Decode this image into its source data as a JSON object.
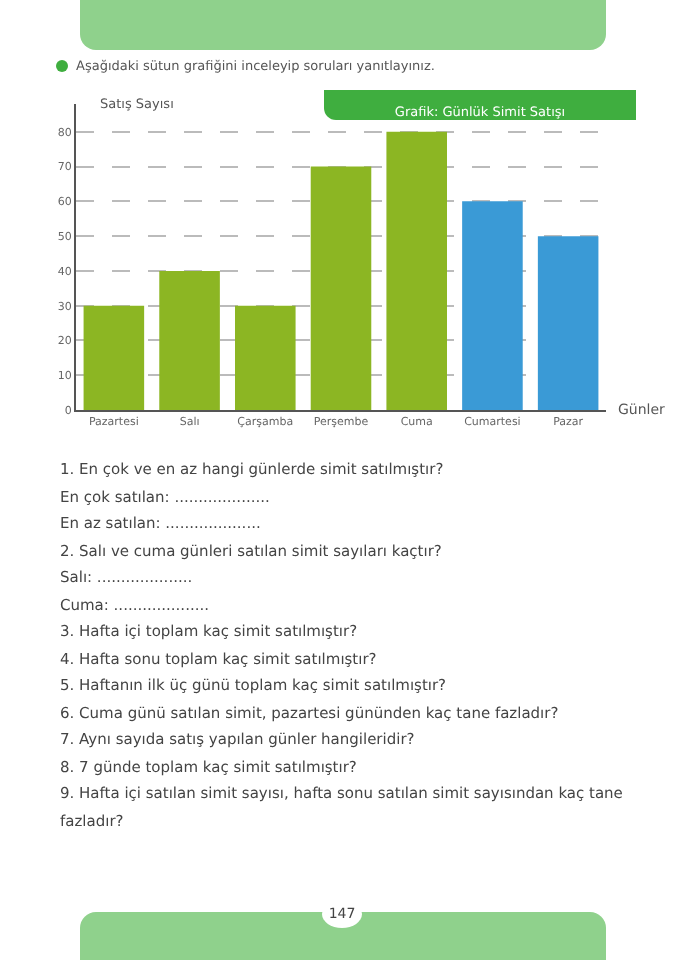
{
  "chart_data": {
    "type": "bar",
    "title": "Grafik: Günlük Simit Satışı",
    "ylabel": "Satış Sayısı",
    "xlabel": "Günler",
    "categories": [
      "Pazartesi",
      "Salı",
      "Çarşamba",
      "Perşembe",
      "Cuma",
      "Cumartesi",
      "Pazar"
    ],
    "values": [
      30,
      40,
      30,
      70,
      80,
      60,
      50
    ],
    "colors": [
      "#8cb623",
      "#8cb623",
      "#8cb623",
      "#8cb623",
      "#8cb623",
      "#3a9ad6",
      "#3a9ad6"
    ],
    "ylim": [
      0,
      88
    ],
    "yticks": [
      0,
      10,
      20,
      30,
      40,
      50,
      60,
      70,
      80
    ],
    "grid": "y",
    "legend": false,
    "annotations": [
      "Aşağıdaki sütun grafiğini inceleyip soruları yanıtlayınız.",
      "1. En çok ve en az hangi günlerde simit satılmıştır?",
      "En çok satılan: ....................",
      "En az satılan: ....................",
      "2. Salı ve cuma günleri satılan simit sayıları kaçtır?",
      "Salı: ....................",
      "Cuma: ....................",
      "3. Hafta içi toplam kaç simit satılmıştır?",
      "4. Hafta sonu toplam kaç simit satılmıştır?",
      "5. Haftanın ilk üç günü toplam kaç simit satılmıştır?",
      "6. Cuma günü satılan simit, pazartesi gününden kaç tane fazladır?",
      "7. Aynı sayıda satış yapılan günler hangileridir?",
      "8. 7 günde toplam kaç simit satılmıştır?",
      "9. Hafta içi satılan simit sayısı, hafta sonu satılan simit sayısından kaç tane fazladır?",
      "147"
    ]
  }
}
